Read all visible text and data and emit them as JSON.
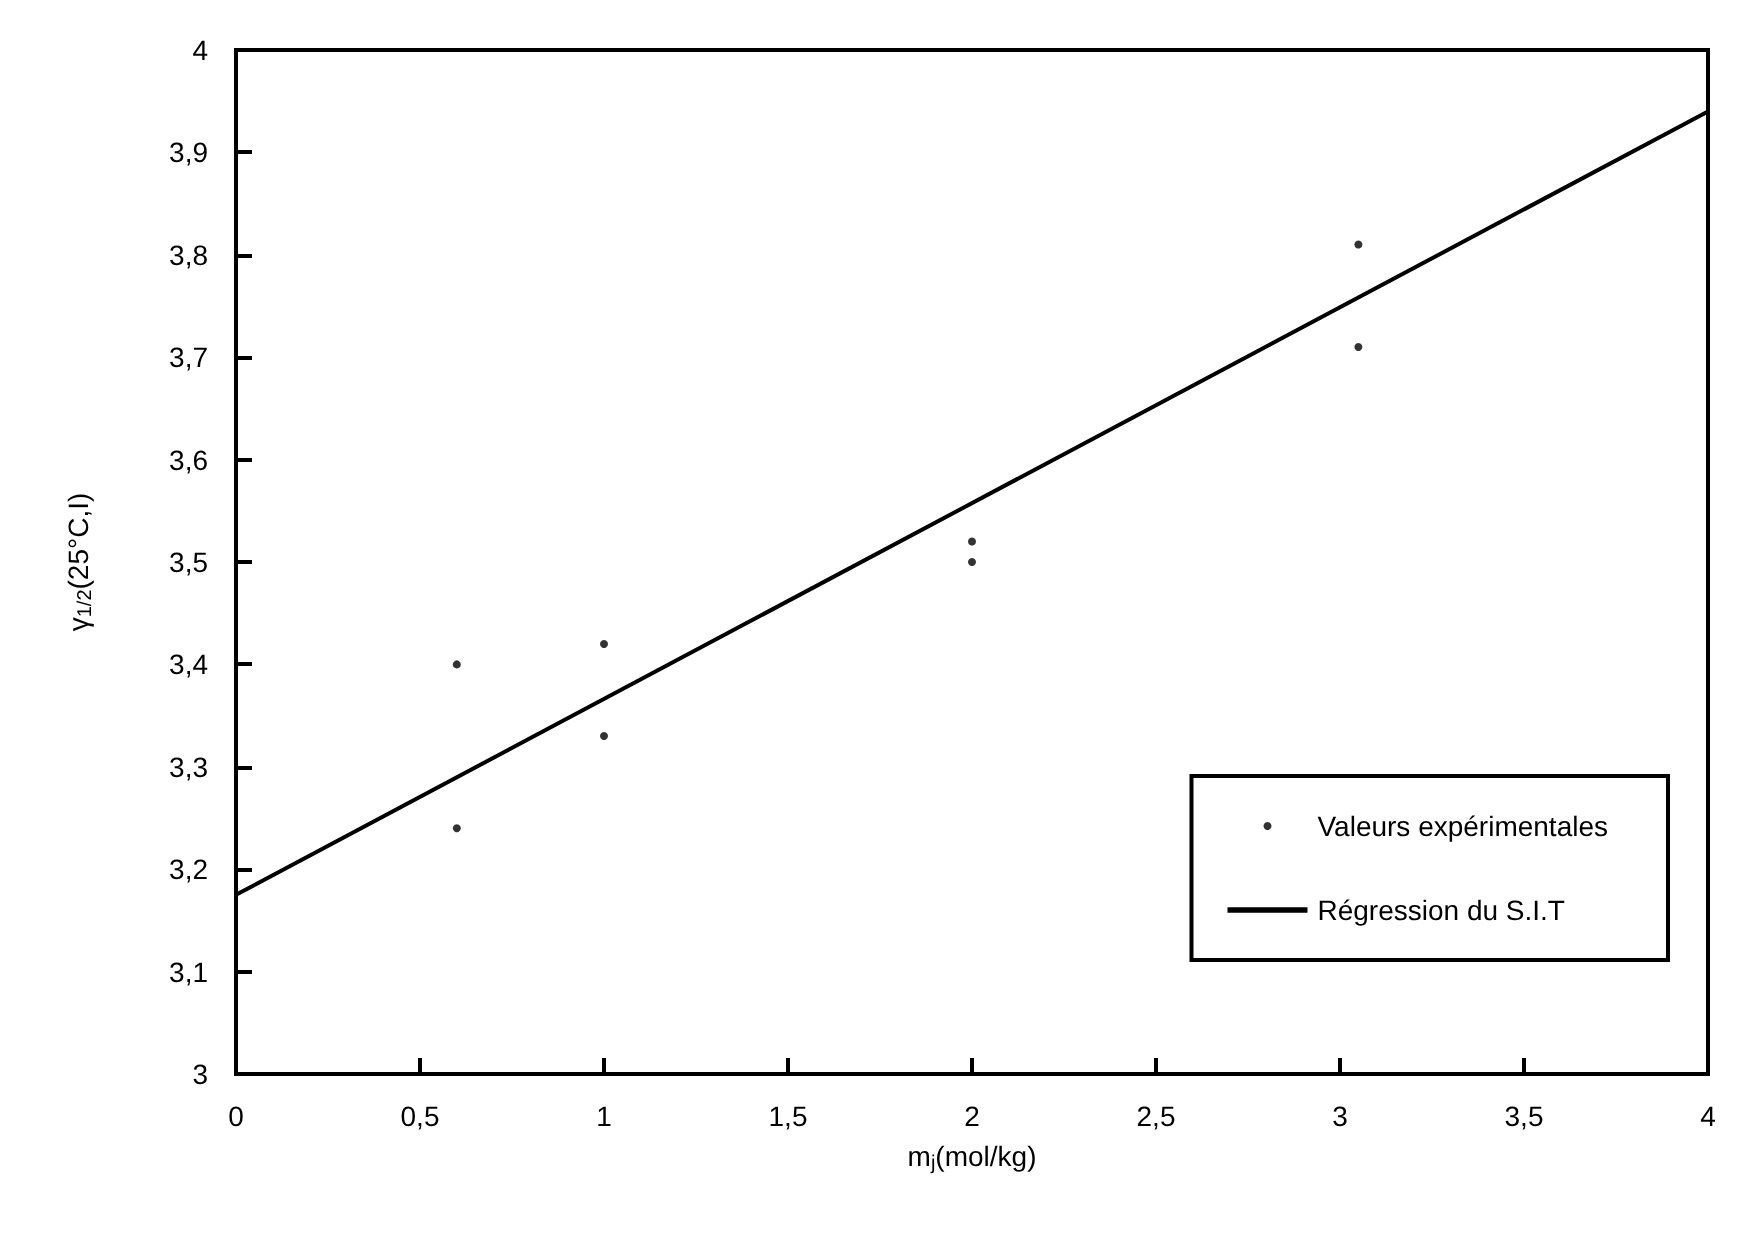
{
  "chart_data": {
    "type": "scatter",
    "xlabel": "m$_{j}$(mol/kg)",
    "ylabel": "γ$_{1/2}$(25°C,I)",
    "xlim": [
      0,
      4
    ],
    "ylim": [
      3,
      4
    ],
    "xticks": [
      0,
      {
        "value": 0.5,
        "label": "0,5"
      },
      1,
      {
        "value": 1.5,
        "label": "1,5"
      },
      2,
      {
        "value": 2.5,
        "label": "2,5"
      },
      3,
      {
        "value": 3.5,
        "label": "3,5"
      },
      4
    ],
    "yticks": [
      3,
      {
        "value": 3.1,
        "label": "3,1"
      },
      {
        "value": 3.2,
        "label": "3,2"
      },
      {
        "value": 3.3,
        "label": "3,3"
      },
      {
        "value": 3.4,
        "label": "3,4"
      },
      {
        "value": 3.5,
        "label": "3,5"
      },
      {
        "value": 3.6,
        "label": "3,6"
      },
      {
        "value": 3.7,
        "label": "3,7"
      },
      {
        "value": 3.8,
        "label": "3,8"
      },
      {
        "value": 3.9,
        "label": "3,9"
      },
      4
    ],
    "grid": false,
    "legend": "bottom right",
    "marker": "circle",
    "series": [
      {
        "name": "Valeurs expérimentales",
        "type": "scatter",
        "color": "#000000",
        "x": [
          0.6,
          0.6,
          1,
          1,
          2,
          2,
          3.05,
          3.05
        ],
        "values": [
          3.4,
          3.24,
          3.42,
          3.33,
          3.52,
          3.5,
          3.81,
          3.71
        ]
      },
      {
        "name": "Régression du S.I.T",
        "type": "line",
        "color": "#000000",
        "marker": "none",
        "x": [
          0,
          4
        ],
        "values": [
          3.175,
          3.94
        ]
      }
    ]
  }
}
